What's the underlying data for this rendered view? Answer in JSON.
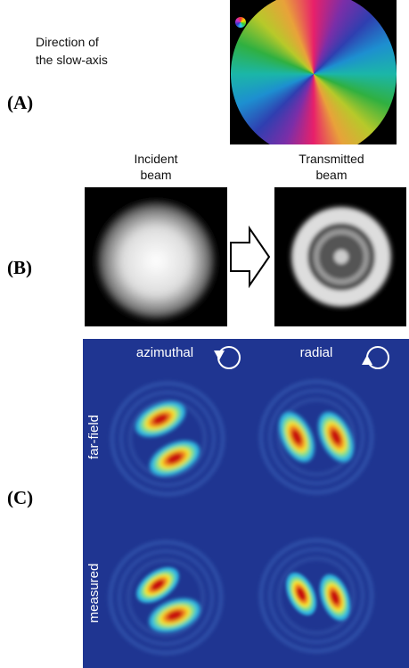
{
  "panel_a": {
    "label": "(A)",
    "caption_lines": [
      "Direction of",
      "the slow-axis"
    ]
  },
  "panel_b": {
    "label": "(B)",
    "incident_lines": [
      "Incident",
      "beam"
    ],
    "transmitted_lines": [
      "Transmitted",
      "beam"
    ]
  },
  "panel_c": {
    "label": "(C)",
    "columns": [
      "azimuthal",
      "radial"
    ],
    "rows": [
      "far-field",
      "measured"
    ]
  }
}
